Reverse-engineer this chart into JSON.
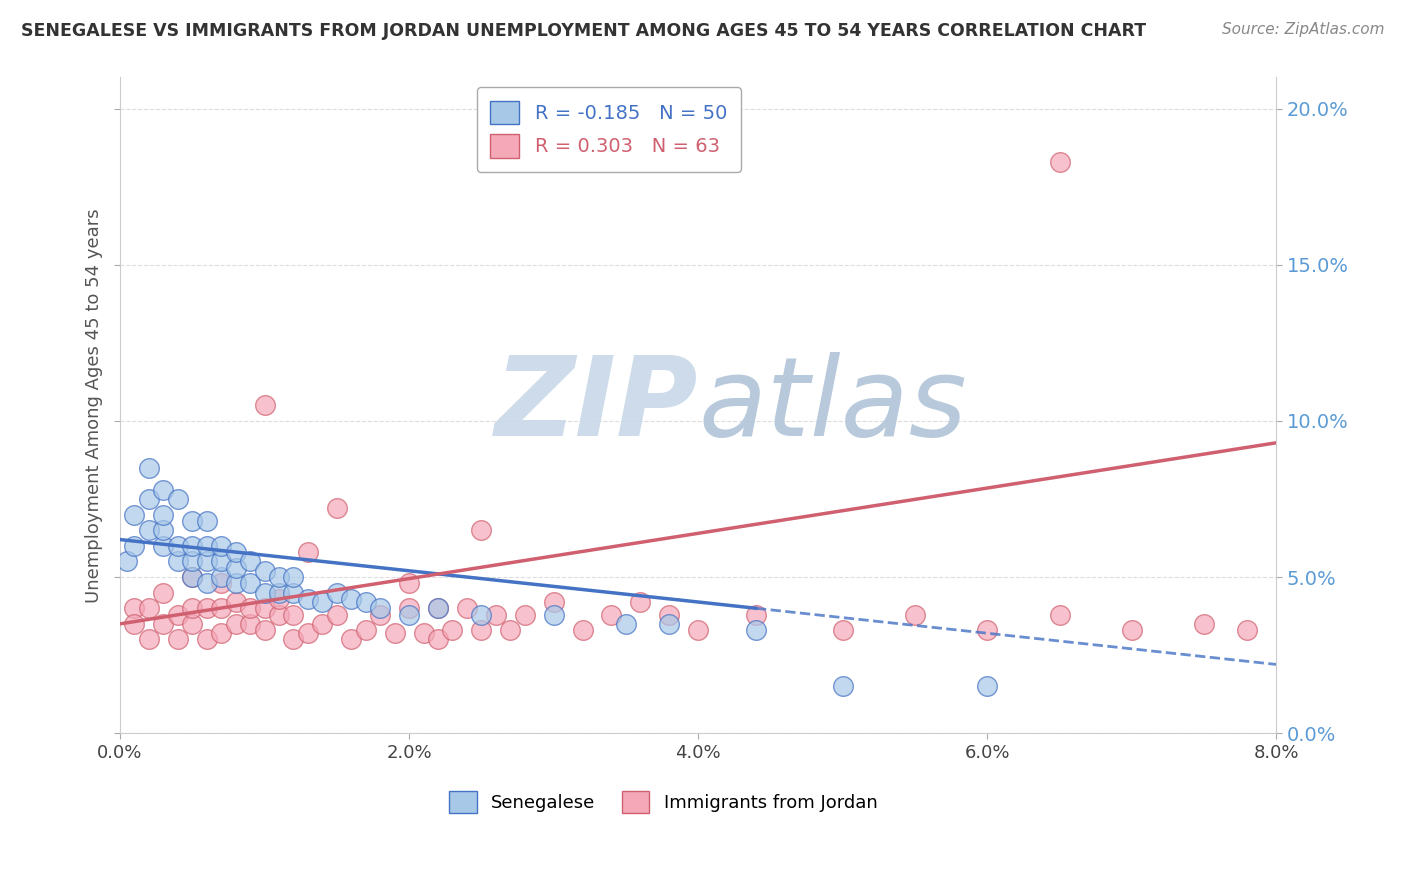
{
  "title": "SENEGALESE VS IMMIGRANTS FROM JORDAN UNEMPLOYMENT AMONG AGES 45 TO 54 YEARS CORRELATION CHART",
  "source": "Source: ZipAtlas.com",
  "ylabel": "Unemployment Among Ages 45 to 54 years",
  "xlim": [
    0.0,
    0.08
  ],
  "ylim": [
    0.0,
    0.21
  ],
  "legend1_label": "R = -0.185   N = 50",
  "legend2_label": "R = 0.303   N = 63",
  "series1_color": "#a8c8e8",
  "series2_color": "#f4a8b8",
  "series1_line_color": "#4472C4",
  "series2_line_color": "#d06070",
  "series1_name": "Senegalese",
  "series2_name": "Immigrants from Jordan",
  "right_tick_color": "#5B9BD5",
  "background_color": "#ffffff",
  "grid_color": "#dddddd",
  "trend1_x0": 0.0,
  "trend1_y0": 0.062,
  "trend1_x1": 0.08,
  "trend1_y1": 0.022,
  "trend1_solid_end_x": 0.044,
  "trend2_x0": 0.0,
  "trend2_y0": 0.035,
  "trend2_x1": 0.08,
  "trend2_y1": 0.093,
  "series1_scatter_x": [
    0.0005,
    0.001,
    0.001,
    0.002,
    0.002,
    0.002,
    0.003,
    0.003,
    0.003,
    0.003,
    0.004,
    0.004,
    0.004,
    0.005,
    0.005,
    0.005,
    0.005,
    0.006,
    0.006,
    0.006,
    0.006,
    0.007,
    0.007,
    0.007,
    0.008,
    0.008,
    0.008,
    0.009,
    0.009,
    0.01,
    0.01,
    0.011,
    0.011,
    0.012,
    0.012,
    0.013,
    0.014,
    0.015,
    0.016,
    0.017,
    0.018,
    0.02,
    0.022,
    0.025,
    0.03,
    0.035,
    0.038,
    0.044,
    0.05,
    0.06
  ],
  "series1_scatter_y": [
    0.055,
    0.06,
    0.07,
    0.065,
    0.075,
    0.085,
    0.06,
    0.065,
    0.07,
    0.078,
    0.055,
    0.06,
    0.075,
    0.05,
    0.055,
    0.06,
    0.068,
    0.048,
    0.055,
    0.06,
    0.068,
    0.05,
    0.055,
    0.06,
    0.048,
    0.053,
    0.058,
    0.048,
    0.055,
    0.045,
    0.052,
    0.045,
    0.05,
    0.045,
    0.05,
    0.043,
    0.042,
    0.045,
    0.043,
    0.042,
    0.04,
    0.038,
    0.04,
    0.038,
    0.038,
    0.035,
    0.035,
    0.033,
    0.015,
    0.015
  ],
  "series2_scatter_x": [
    0.001,
    0.001,
    0.002,
    0.002,
    0.003,
    0.003,
    0.004,
    0.004,
    0.005,
    0.005,
    0.005,
    0.006,
    0.006,
    0.007,
    0.007,
    0.007,
    0.008,
    0.008,
    0.009,
    0.009,
    0.01,
    0.01,
    0.011,
    0.011,
    0.012,
    0.012,
    0.013,
    0.013,
    0.014,
    0.015,
    0.015,
    0.016,
    0.017,
    0.018,
    0.019,
    0.02,
    0.02,
    0.021,
    0.022,
    0.022,
    0.023,
    0.024,
    0.025,
    0.026,
    0.027,
    0.028,
    0.03,
    0.032,
    0.034,
    0.036,
    0.038,
    0.04,
    0.044,
    0.05,
    0.055,
    0.06,
    0.065,
    0.07,
    0.075,
    0.078,
    0.01,
    0.025,
    0.065
  ],
  "series2_scatter_y": [
    0.04,
    0.035,
    0.03,
    0.04,
    0.035,
    0.045,
    0.03,
    0.038,
    0.035,
    0.04,
    0.05,
    0.03,
    0.04,
    0.032,
    0.04,
    0.048,
    0.035,
    0.042,
    0.035,
    0.04,
    0.033,
    0.04,
    0.038,
    0.043,
    0.03,
    0.038,
    0.032,
    0.058,
    0.035,
    0.038,
    0.072,
    0.03,
    0.033,
    0.038,
    0.032,
    0.04,
    0.048,
    0.032,
    0.03,
    0.04,
    0.033,
    0.04,
    0.033,
    0.038,
    0.033,
    0.038,
    0.042,
    0.033,
    0.038,
    0.042,
    0.038,
    0.033,
    0.038,
    0.033,
    0.038,
    0.033,
    0.038,
    0.033,
    0.035,
    0.033,
    0.105,
    0.065,
    0.183
  ]
}
